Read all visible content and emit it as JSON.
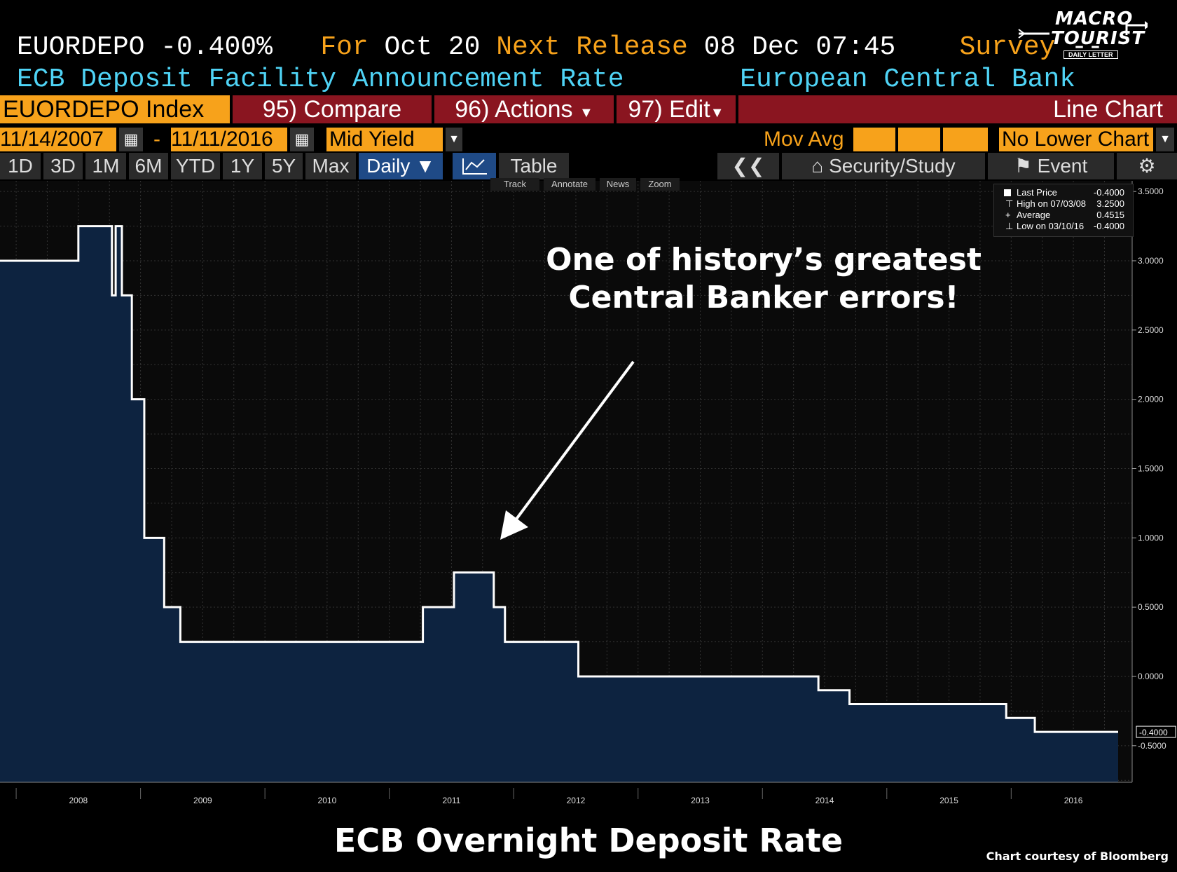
{
  "header": {
    "ticker": "EUORDEPO",
    "value": "-0.400%",
    "for_label": "For",
    "for_date": "Oct 20",
    "next_label": "Next Release",
    "next_date": "08 Dec 07:45",
    "survey_label": "Survey",
    "survey_value": "--",
    "name": "ECB Deposit Facility Announcement Rate",
    "source": "European Central Bank"
  },
  "logo": {
    "line1": "MACRO",
    "line2": "TOURIST",
    "line3": "DAILY LETTER"
  },
  "toolbar": {
    "index": "EUORDEPO Index",
    "compare": "95) Compare",
    "actions": "96) Actions",
    "edit": "97) Edit",
    "chart_type": "Line Chart"
  },
  "range": {
    "start": "11/14/2007",
    "dash": "-",
    "end": "11/11/2016",
    "field": "Mid Yield",
    "mov_avg": "Mov Avg",
    "lower": "No Lower Chart"
  },
  "periods": [
    "1D",
    "3D",
    "1M",
    "6M",
    "YTD",
    "1Y",
    "5Y",
    "Max"
  ],
  "period_select": "Daily ▼",
  "table_label": "Table",
  "back_label": "❮❮",
  "security_label": "Security/Study",
  "event_label": "Event",
  "chart_tools": [
    "Track",
    "Annotate",
    "News",
    "Zoom"
  ],
  "legend": {
    "last_label": "Last Price",
    "last_value": "-0.4000",
    "high_label": "High on 07/03/08",
    "high_value": "3.2500",
    "avg_label": "Average",
    "avg_value": "0.4515",
    "low_label": "Low on 03/10/16",
    "low_value": "-0.4000"
  },
  "annotation": {
    "line1": "One of history’s greatest",
    "line2": "Central Banker errors!"
  },
  "caption": "ECB Overnight Deposit Rate",
  "credit": "Chart courtesy of Bloomberg",
  "colors": {
    "orange": "#f7a21b",
    "cyan": "#4fd3f5",
    "red": "#8a1520",
    "fill": "#0d2340",
    "line": "#ffffff"
  },
  "chart_data": {
    "type": "area",
    "title": "ECB Overnight Deposit Rate",
    "xlim": [
      2007.87,
      2016.86
    ],
    "ylim": [
      -0.75,
      3.6
    ],
    "y_ticks": [
      "3.5000",
      "3.0000",
      "2.5000",
      "2.0000",
      "1.5000",
      "1.0000",
      "0.5000",
      "0.0000",
      "-0.5000"
    ],
    "y_tick_values": [
      3.5,
      3.0,
      2.5,
      2.0,
      1.5,
      1.0,
      0.5,
      0.0,
      -0.5
    ],
    "x_ticks": [
      "2008",
      "2009",
      "2010",
      "2011",
      "2012",
      "2013",
      "2014",
      "2015",
      "2016"
    ],
    "x_tick_values": [
      2008.5,
      2009.5,
      2010.5,
      2011.5,
      2012.5,
      2013.5,
      2014.5,
      2015.5,
      2016.5
    ],
    "last_value_label": "-0.4000",
    "step_x": [
      2007.87,
      2008.5,
      2008.77,
      2008.8,
      2008.85,
      2008.93,
      2009.03,
      2009.19,
      2009.32,
      2011.27,
      2011.52,
      2011.84,
      2011.93,
      2012.52,
      2014.45,
      2014.7,
      2015.96,
      2016.19,
      2016.86
    ],
    "step_y": [
      3.0,
      3.25,
      2.75,
      3.25,
      2.75,
      2.0,
      1.0,
      0.5,
      0.25,
      0.5,
      0.75,
      0.5,
      0.25,
      0.0,
      -0.1,
      -0.2,
      -0.3,
      -0.4,
      -0.4
    ]
  }
}
